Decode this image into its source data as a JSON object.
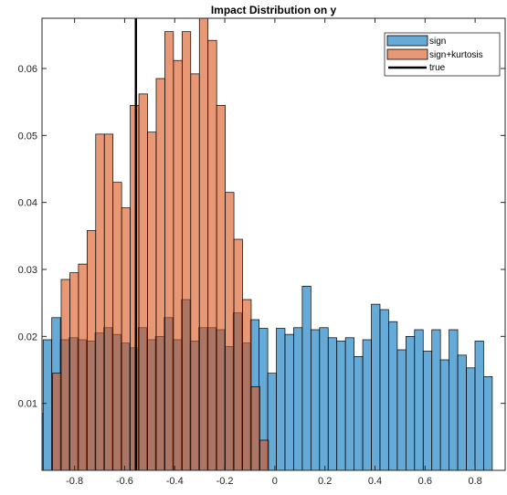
{
  "chart_data": {
    "type": "bar",
    "title": "Impact Distribution on y",
    "xlabel": "",
    "ylabel": "",
    "xlim": [
      -0.93,
      0.92
    ],
    "ylim": [
      0,
      0.0675
    ],
    "bin_width": 0.0345,
    "x_ticks": [
      -0.8,
      -0.6,
      -0.4,
      -0.2,
      0,
      0.2,
      0.4,
      0.6,
      0.8
    ],
    "x_tick_labels": [
      "-0.8",
      "-0.6",
      "-0.4",
      "-0.2",
      "0",
      "0.2",
      "0.4",
      "0.6",
      "0.8"
    ],
    "y_ticks": [
      0.01,
      0.02,
      0.03,
      0.04,
      0.05,
      0.06
    ],
    "y_tick_labels": [
      "0.01",
      "0.02",
      "0.03",
      "0.04",
      "0.05",
      "0.06"
    ],
    "grid": false,
    "legend_position": "top-right",
    "series": [
      {
        "name": "sign",
        "type": "histogram",
        "color": "#0072BD",
        "bin_start": -0.96,
        "values": [
          0.0085,
          0.0195,
          0.0228,
          0.0195,
          0.0198,
          0.0195,
          0.0193,
          0.0205,
          0.0213,
          0.0203,
          0.019,
          0.0183,
          0.0213,
          0.0195,
          0.02,
          0.0228,
          0.0195,
          0.0255,
          0.0193,
          0.0213,
          0.0213,
          0.021,
          0.0185,
          0.0235,
          0.019,
          0.0225,
          0.0212,
          0.0145,
          0.0212,
          0.0203,
          0.0213,
          0.0275,
          0.021,
          0.0213,
          0.0198,
          0.0193,
          0.0198,
          0.017,
          0.0195,
          0.0248,
          0.024,
          0.0222,
          0.018,
          0.02,
          0.021,
          0.0178,
          0.021,
          0.0165,
          0.021,
          0.0172,
          0.0153,
          0.0193,
          0.014
        ]
      },
      {
        "name": "sign+kurtosis",
        "type": "histogram",
        "color": "#D95319",
        "bin_start": -0.888,
        "values": [
          0.0145,
          0.0285,
          0.0295,
          0.0308,
          0.0358,
          0.0502,
          0.0502,
          0.043,
          0.0392,
          0.0545,
          0.0562,
          0.0505,
          0.0585,
          0.0655,
          0.0612,
          0.0655,
          0.0592,
          0.0678,
          0.0642,
          0.0545,
          0.0415,
          0.0345,
          0.0255,
          0.0125,
          0.0045
        ]
      },
      {
        "name": "true",
        "type": "vertical-line",
        "color": "#000000",
        "x": -0.555
      }
    ]
  }
}
